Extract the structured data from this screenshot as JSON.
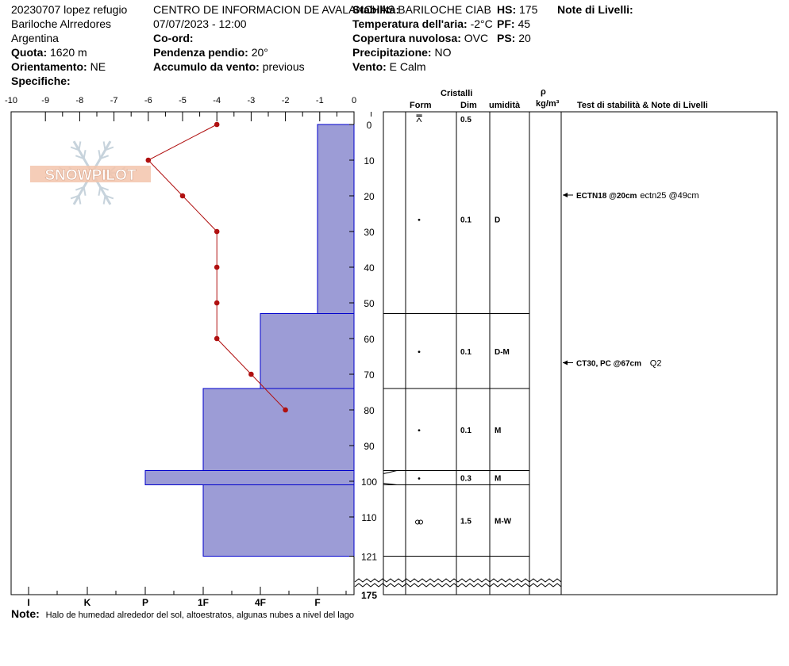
{
  "header": {
    "col1": [
      "20230707 lopez refugio",
      "Bariloche Alrredores",
      "Argentina"
    ],
    "quota_label": "Quota:",
    "quota_value": "1620 m",
    "orient_label": "Orientamento:",
    "orient_value": "NE",
    "specifiche_label": "Specifiche:",
    "center": "CENTRO DE INFORMACION DE AVALANCHAS BARILOCHE CIAB",
    "datetime": "07/07/2023 - 12:00",
    "coord_label": "Co-ord:",
    "slope_label": "Pendenza pendio:",
    "slope_value": "20°",
    "wind_loading_label": "Accumulo da vento:",
    "wind_loading_value": "previous",
    "stability_label": "Stabilità:",
    "air_temp_label": "Temperatura dell'aria:",
    "air_temp_value": "-2°C",
    "cloud_label": "Copertura nuvolosa:",
    "cloud_value": "OVC",
    "precip_label": "Precipitazione:",
    "precip_value": "NO",
    "wind_label": "Vento:",
    "wind_value": "E Calm",
    "hs_label": "HS:",
    "hs_value": "175",
    "pf_label": "PF:",
    "pf_value": "45",
    "ps_label": "PS:",
    "ps_value": "20",
    "notes_label": "Note di Livelli:"
  },
  "watermark": "SNOWPILOT",
  "table_headers": {
    "cristalli": "Cristalli",
    "form": "Form",
    "dim": "Dim",
    "umidita": "umidità",
    "rho": "ρ",
    "rho_unit": "kg/m³",
    "tests": "Test di stabilità & Note di Livelli"
  },
  "footer": {
    "note_label": "Note:",
    "note_text": "Halo de humedad alrededor del sol, altoestratos, algunas nubes a nivel del lago"
  },
  "chart_data": {
    "type": "snow_profile",
    "temperature_axis": {
      "ticks": [
        -10,
        -9,
        -8,
        -7,
        -6,
        -5,
        -4,
        -3,
        -2,
        -1,
        0
      ],
      "range": [
        -10,
        0
      ]
    },
    "hardness_axis": {
      "labels": [
        "I",
        "K",
        "P",
        "1F",
        "4F",
        "F"
      ]
    },
    "depth_axis": {
      "ticks": [
        0,
        10,
        20,
        30,
        40,
        50,
        60,
        70,
        80,
        90,
        100,
        110,
        121
      ],
      "bottom_label": "175"
    },
    "temperature_profile": [
      {
        "depth": 0,
        "temp": -4
      },
      {
        "depth": 10,
        "temp": -6
      },
      {
        "depth": 20,
        "temp": -5
      },
      {
        "depth": 30,
        "temp": -4
      },
      {
        "depth": 40,
        "temp": -4
      },
      {
        "depth": 50,
        "temp": -4
      },
      {
        "depth": 60,
        "temp": -4
      },
      {
        "depth": 70,
        "temp": -3
      },
      {
        "depth": 80,
        "temp": -2
      }
    ],
    "hardness_layers": [
      {
        "top": 0,
        "bottom": 53,
        "hardness": "F"
      },
      {
        "top": 53,
        "bottom": 74,
        "hardness": "4F"
      },
      {
        "top": 74,
        "bottom": 97,
        "hardness": "1F"
      },
      {
        "top": 97,
        "bottom": 101,
        "hardness": "P"
      },
      {
        "top": 101,
        "bottom": 121,
        "hardness": "1F"
      }
    ],
    "layers": [
      {
        "top": 0,
        "bottom": 0,
        "form": "surface-hoar",
        "dim": "0.5",
        "wetness": ""
      },
      {
        "top": 0,
        "bottom": 53,
        "form": "dot",
        "dim": "0.1",
        "wetness": "D"
      },
      {
        "top": 53,
        "bottom": 74,
        "form": "dot",
        "dim": "0.1",
        "wetness": "D-M"
      },
      {
        "top": 74,
        "bottom": 97,
        "form": "dot",
        "dim": "0.1",
        "wetness": "M"
      },
      {
        "top": 97,
        "bottom": 101,
        "form": "dot",
        "dim": "0.3",
        "wetness": "M"
      },
      {
        "top": 101,
        "bottom": 121,
        "form": "melt-forms",
        "dim": "1.5",
        "wetness": "M-W"
      }
    ],
    "tests": [
      {
        "depth": 20,
        "bold": "ECTN18 @20cm",
        "text": "ectn25 @49cm"
      },
      {
        "depth": 67,
        "bold": "CT30, PC @67cm",
        "text": "Q2"
      }
    ],
    "colors": {
      "hardness_fill": "#9c9cd6",
      "hardness_stroke": "#0000cc",
      "temperature": "#b01010"
    }
  }
}
